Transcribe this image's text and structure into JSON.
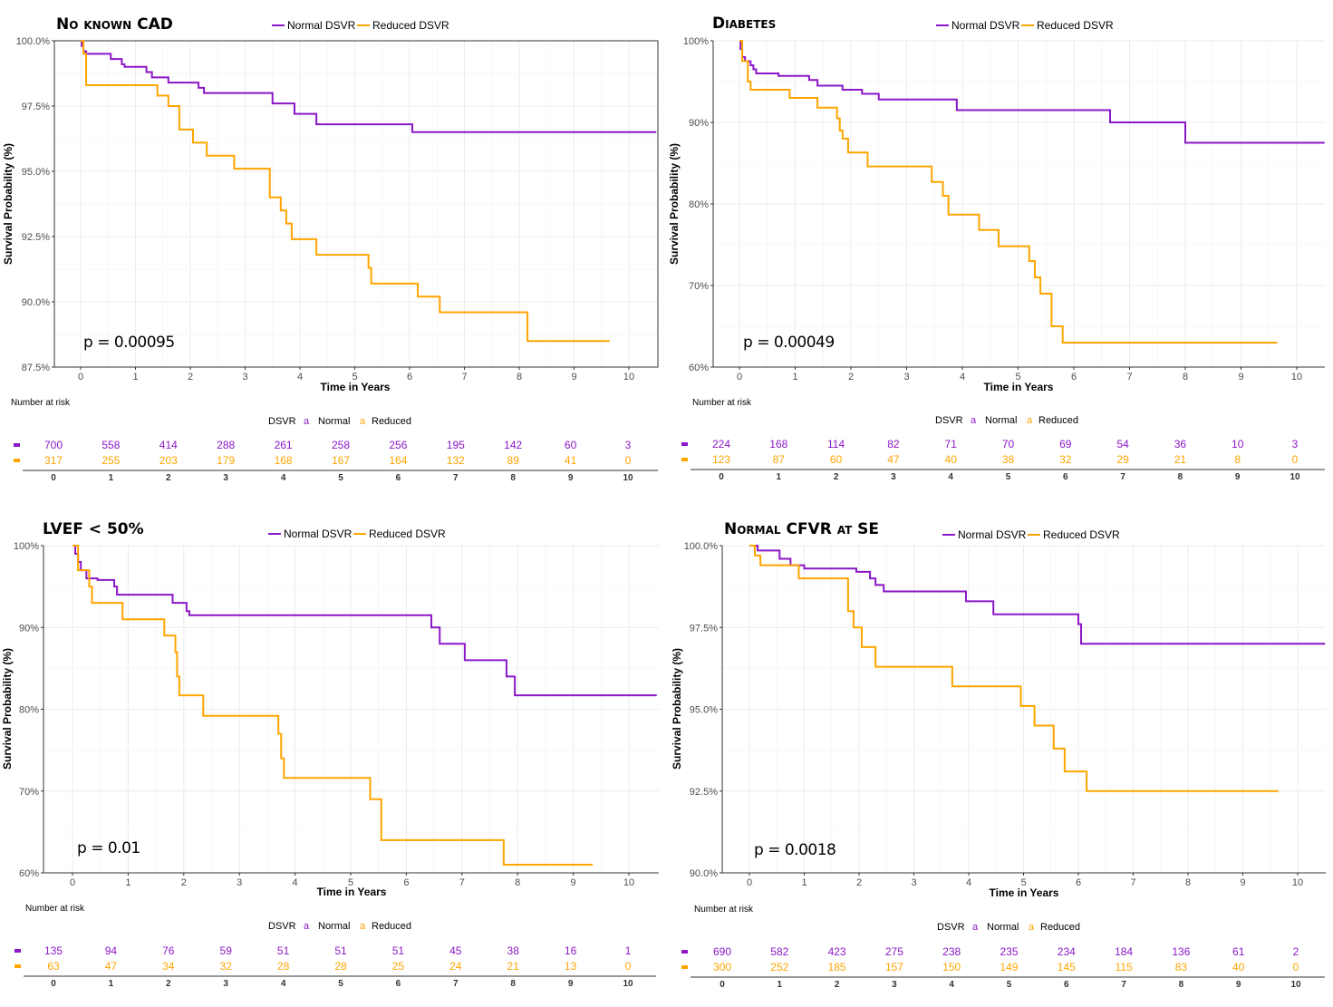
{
  "colors": {
    "normal": "#8B17C7",
    "reduced": "#FFA500",
    "grid": "#EBEBEB",
    "axis": "#333333"
  },
  "chart_data": [
    {
      "type": "line",
      "title": "No known CAD",
      "xlabel": "Time in Years",
      "ylabel": "Survival Probability (%)",
      "xlim": [
        0,
        10
      ],
      "ylim": [
        87.5,
        100
      ],
      "y_ticks": [
        87.5,
        90,
        92.5,
        95,
        97.5,
        100
      ],
      "y_tick_labels": [
        "87.5%",
        "90.0%",
        "92.5%",
        "95.0%",
        "97.5%",
        "100.0%"
      ],
      "x_ticks": [
        0,
        1,
        2,
        3,
        4,
        5,
        6,
        7,
        8,
        9,
        10
      ],
      "panel_border": true,
      "legend": {
        "position": "top",
        "items": [
          "Normal DSVR",
          "Reduced DSVR"
        ]
      },
      "pvalue": "p = 0.00095",
      "series": [
        {
          "name": "Normal DSVR",
          "color_key": "normal",
          "steps": [
            [
              0,
              100
            ],
            [
              0.02,
              99.8
            ],
            [
              0.05,
              99.6
            ],
            [
              0.1,
              99.5
            ],
            [
              0.55,
              99.3
            ],
            [
              0.75,
              99.1
            ],
            [
              0.8,
              99.0
            ],
            [
              1.2,
              98.8
            ],
            [
              1.3,
              98.6
            ],
            [
              1.6,
              98.4
            ],
            [
              2.15,
              98.2
            ],
            [
              2.25,
              98.0
            ],
            [
              3.5,
              97.6
            ],
            [
              3.9,
              97.2
            ],
            [
              4.3,
              96.8
            ],
            [
              6.05,
              96.5
            ],
            [
              10.5,
              96.5
            ]
          ]
        },
        {
          "name": "Reduced DSVR",
          "color_key": "reduced",
          "steps": [
            [
              0,
              100
            ],
            [
              0.05,
              99.5
            ],
            [
              0.1,
              98.3
            ],
            [
              1.4,
              97.9
            ],
            [
              1.6,
              97.5
            ],
            [
              1.8,
              96.6
            ],
            [
              2.05,
              96.1
            ],
            [
              2.3,
              95.6
            ],
            [
              2.8,
              95.1
            ],
            [
              3.45,
              94.0
            ],
            [
              3.65,
              93.5
            ],
            [
              3.75,
              93.0
            ],
            [
              3.85,
              92.4
            ],
            [
              4.3,
              91.8
            ],
            [
              5.25,
              91.3
            ],
            [
              5.3,
              90.7
            ],
            [
              6.15,
              90.2
            ],
            [
              6.55,
              89.6
            ],
            [
              8.15,
              88.5
            ],
            [
              9.65,
              88.5
            ]
          ]
        }
      ],
      "risk_table": {
        "title": "Number at risk",
        "legend_title": "DSVR",
        "legend_items": [
          "Normal",
          "Reduced"
        ],
        "legend_glyph": "a",
        "x_ticks": [
          0,
          1,
          2,
          3,
          4,
          5,
          6,
          7,
          8,
          9,
          10
        ],
        "normal": [
          700,
          558,
          414,
          288,
          261,
          258,
          256,
          195,
          142,
          60,
          3
        ],
        "reduced": [
          317,
          255,
          203,
          179,
          168,
          167,
          164,
          132,
          89,
          41,
          0
        ]
      }
    },
    {
      "type": "line",
      "title": "Diabetes",
      "xlabel": "Time in Years",
      "ylabel": "Survival Probability (%)",
      "xlim": [
        0,
        10
      ],
      "ylim": [
        60,
        100
      ],
      "y_ticks": [
        60,
        70,
        80,
        90,
        100
      ],
      "y_tick_labels": [
        "60%",
        "70%",
        "80%",
        "90%",
        "100%"
      ],
      "x_ticks": [
        0,
        1,
        2,
        3,
        4,
        5,
        6,
        7,
        8,
        9,
        10
      ],
      "panel_border": false,
      "legend": {
        "position": "top",
        "items": [
          "Normal DSVR",
          "Reduced DSVR"
        ]
      },
      "pvalue": "p = 0.00049",
      "series": [
        {
          "name": "Normal DSVR",
          "color_key": "normal",
          "steps": [
            [
              0,
              100
            ],
            [
              0.02,
              99.0
            ],
            [
              0.05,
              98.0
            ],
            [
              0.1,
              97.5
            ],
            [
              0.2,
              97.0
            ],
            [
              0.25,
              96.5
            ],
            [
              0.3,
              96.0
            ],
            [
              0.7,
              95.7
            ],
            [
              1.25,
              95.2
            ],
            [
              1.4,
              94.5
            ],
            [
              1.85,
              94.0
            ],
            [
              2.2,
              93.5
            ],
            [
              2.5,
              92.8
            ],
            [
              3.9,
              91.5
            ],
            [
              6.65,
              90.0
            ],
            [
              8.0,
              87.5
            ],
            [
              10.5,
              87.5
            ]
          ]
        },
        {
          "name": "Reduced DSVR",
          "color_key": "reduced",
          "steps": [
            [
              0,
              100
            ],
            [
              0.05,
              97.5
            ],
            [
              0.15,
              95.0
            ],
            [
              0.2,
              94.0
            ],
            [
              0.9,
              93.0
            ],
            [
              1.4,
              91.8
            ],
            [
              1.75,
              90.5
            ],
            [
              1.8,
              89.0
            ],
            [
              1.85,
              88.0
            ],
            [
              1.95,
              86.3
            ],
            [
              2.3,
              84.6
            ],
            [
              3.45,
              82.7
            ],
            [
              3.65,
              81.0
            ],
            [
              3.75,
              78.7
            ],
            [
              4.3,
              76.8
            ],
            [
              4.65,
              74.8
            ],
            [
              5.2,
              73.0
            ],
            [
              5.3,
              71.0
            ],
            [
              5.4,
              69.0
            ],
            [
              5.6,
              65.0
            ],
            [
              5.8,
              63.0
            ],
            [
              9.65,
              63.0
            ]
          ]
        }
      ],
      "risk_table": {
        "title": "Number at risk",
        "legend_title": "DSVR",
        "legend_items": [
          "Normal",
          "Reduced"
        ],
        "legend_glyph": "a",
        "x_ticks": [
          0,
          1,
          2,
          3,
          4,
          5,
          6,
          7,
          8,
          9,
          10
        ],
        "normal": [
          224,
          168,
          114,
          82,
          71,
          70,
          69,
          54,
          36,
          10,
          3
        ],
        "reduced": [
          123,
          87,
          60,
          47,
          40,
          38,
          32,
          29,
          21,
          8,
          0
        ]
      }
    },
    {
      "type": "line",
      "title": "LVEF < 50%",
      "xlabel": "Time in Years",
      "ylabel": "Survival Probability (%)",
      "xlim": [
        0,
        10
      ],
      "ylim": [
        60,
        100
      ],
      "y_ticks": [
        60,
        70,
        80,
        90,
        100
      ],
      "y_tick_labels": [
        "60%",
        "70%",
        "80%",
        "90%",
        "100%"
      ],
      "x_ticks": [
        0,
        1,
        2,
        3,
        4,
        5,
        6,
        7,
        8,
        9,
        10
      ],
      "panel_border": false,
      "legend": {
        "position": "top",
        "items": [
          "Normal DSVR",
          "Reduced DSVR"
        ]
      },
      "pvalue": "p = 0.01",
      "series": [
        {
          "name": "Normal DSVR",
          "color_key": "normal",
          "steps": [
            [
              0,
              100
            ],
            [
              0.05,
              99.0
            ],
            [
              0.1,
              98.0
            ],
            [
              0.15,
              97.0
            ],
            [
              0.25,
              96.0
            ],
            [
              0.45,
              95.8
            ],
            [
              0.75,
              95.0
            ],
            [
              0.8,
              94.0
            ],
            [
              1.8,
              93.0
            ],
            [
              2.05,
              92.0
            ],
            [
              2.1,
              91.5
            ],
            [
              6.45,
              90.0
            ],
            [
              6.6,
              88.0
            ],
            [
              7.05,
              86.0
            ],
            [
              7.8,
              84.0
            ],
            [
              7.95,
              81.7
            ],
            [
              10.5,
              81.7
            ]
          ]
        },
        {
          "name": "Reduced DSVR",
          "color_key": "reduced",
          "steps": [
            [
              0,
              100
            ],
            [
              0.1,
              97.0
            ],
            [
              0.3,
              95.0
            ],
            [
              0.35,
              93.0
            ],
            [
              0.9,
              91.0
            ],
            [
              1.65,
              89.0
            ],
            [
              1.85,
              87.0
            ],
            [
              1.88,
              84.0
            ],
            [
              1.92,
              81.7
            ],
            [
              2.35,
              79.2
            ],
            [
              3.7,
              77.0
            ],
            [
              3.75,
              74.0
            ],
            [
              3.8,
              71.6
            ],
            [
              5.35,
              69.0
            ],
            [
              5.55,
              64.0
            ],
            [
              7.75,
              61.0
            ],
            [
              9.35,
              61.0
            ]
          ]
        }
      ],
      "risk_table": {
        "title": "Number at risk",
        "legend_title": "DSVR",
        "legend_items": [
          "Normal",
          "Reduced"
        ],
        "legend_glyph": "a",
        "x_ticks": [
          0,
          1,
          2,
          3,
          4,
          5,
          6,
          7,
          8,
          9,
          10
        ],
        "normal": [
          135,
          94,
          76,
          59,
          51,
          51,
          51,
          45,
          38,
          16,
          1
        ],
        "reduced": [
          63,
          47,
          34,
          32,
          28,
          28,
          25,
          24,
          21,
          13,
          0
        ]
      }
    },
    {
      "type": "line",
      "title": "Normal CFVR at SE",
      "xlabel": "Time in Years",
      "ylabel": "Survival Probability (%)",
      "xlim": [
        0,
        10
      ],
      "ylim": [
        90,
        100
      ],
      "y_ticks": [
        90,
        92.5,
        95,
        97.5,
        100
      ],
      "y_tick_labels": [
        "90.0%",
        "92.5%",
        "95.0%",
        "97.5%",
        "100.0%"
      ],
      "x_ticks": [
        0,
        1,
        2,
        3,
        4,
        5,
        6,
        7,
        8,
        9,
        10
      ],
      "panel_border": false,
      "legend": {
        "position": "top",
        "items": [
          "Normal DSVR",
          "Reduced DSVR"
        ]
      },
      "pvalue": "p = 0.0018",
      "series": [
        {
          "name": "Normal DSVR",
          "color_key": "normal",
          "steps": [
            [
              0,
              100
            ],
            [
              0.15,
              99.85
            ],
            [
              0.55,
              99.6
            ],
            [
              0.75,
              99.4
            ],
            [
              1.0,
              99.3
            ],
            [
              1.95,
              99.2
            ],
            [
              2.2,
              99.0
            ],
            [
              2.3,
              98.8
            ],
            [
              2.45,
              98.6
            ],
            [
              3.95,
              98.3
            ],
            [
              4.45,
              97.9
            ],
            [
              6.0,
              97.6
            ],
            [
              6.05,
              97.0
            ],
            [
              10.5,
              97.0
            ]
          ]
        },
        {
          "name": "Reduced DSVR",
          "color_key": "reduced",
          "steps": [
            [
              0,
              100
            ],
            [
              0.1,
              99.7
            ],
            [
              0.2,
              99.4
            ],
            [
              0.9,
              99.0
            ],
            [
              1.8,
              98.0
            ],
            [
              1.9,
              97.5
            ],
            [
              2.05,
              96.9
            ],
            [
              2.3,
              96.3
            ],
            [
              3.7,
              95.7
            ],
            [
              4.95,
              95.1
            ],
            [
              5.2,
              94.5
            ],
            [
              5.55,
              93.8
            ],
            [
              5.75,
              93.1
            ],
            [
              6.15,
              92.5
            ],
            [
              9.65,
              92.5
            ]
          ]
        }
      ],
      "risk_table": {
        "title": "Number at risk",
        "legend_title": "DSVR",
        "legend_items": [
          "Normal",
          "Reduced"
        ],
        "legend_glyph": "a",
        "x_ticks": [
          0,
          1,
          2,
          3,
          4,
          5,
          6,
          7,
          8,
          9,
          10
        ],
        "normal": [
          690,
          582,
          423,
          275,
          238,
          235,
          234,
          184,
          136,
          61,
          2
        ],
        "reduced": [
          300,
          252,
          185,
          157,
          150,
          149,
          145,
          115,
          83,
          40,
          0
        ]
      }
    }
  ]
}
